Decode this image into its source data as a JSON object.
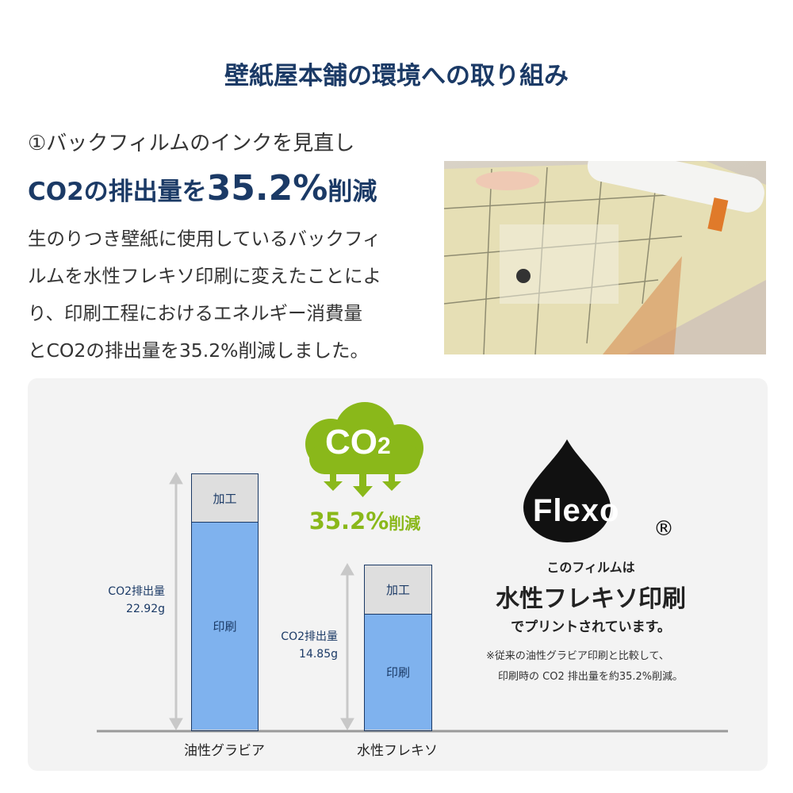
{
  "title": "壁紙屋本舗の環境への取り組み",
  "section": {
    "subheading": "①バックフィルムのインクを見直し",
    "headline_prefix": "CO2の排出量を",
    "headline_value": "35.2%",
    "headline_suffix": "削減",
    "body_lines": [
      "生のりつき壁紙に使用しているバックフィ",
      "ルムを水性フレキソ印刷に変えたことによ",
      "り、印刷工程におけるエネルギー消費量",
      "とCO2の排出量を35.2%削減しました。"
    ]
  },
  "chart_data": {
    "type": "bar",
    "stacked": true,
    "categories": [
      "油性グラビア",
      "水性フレキソ"
    ],
    "values": [
      22.92,
      14.85
    ],
    "unit": "g",
    "value_label": "CO2排出量",
    "value_texts": [
      "22.92g",
      "14.85g"
    ],
    "segments": [
      "加工",
      "印刷"
    ],
    "colors": {
      "加工": "#dedede",
      "印刷": "#7fb2ee",
      "border": "#1b3a66"
    }
  },
  "badge": {
    "cloud_text": "CO",
    "cloud_sub": "2",
    "reduction": "35.2%",
    "reduction_suffix": "削減",
    "color": "#8ab81a"
  },
  "flexo": {
    "logo_text": "Flexo",
    "registered": "®",
    "line1": "このフィルムは",
    "line2": "水性フレキソ印刷",
    "line3": "でプリントされています。",
    "note1": "※従来の油性グラビア印刷と比較して、",
    "note2": "印刷時の CO2 排出量を約35.2%削減。"
  }
}
